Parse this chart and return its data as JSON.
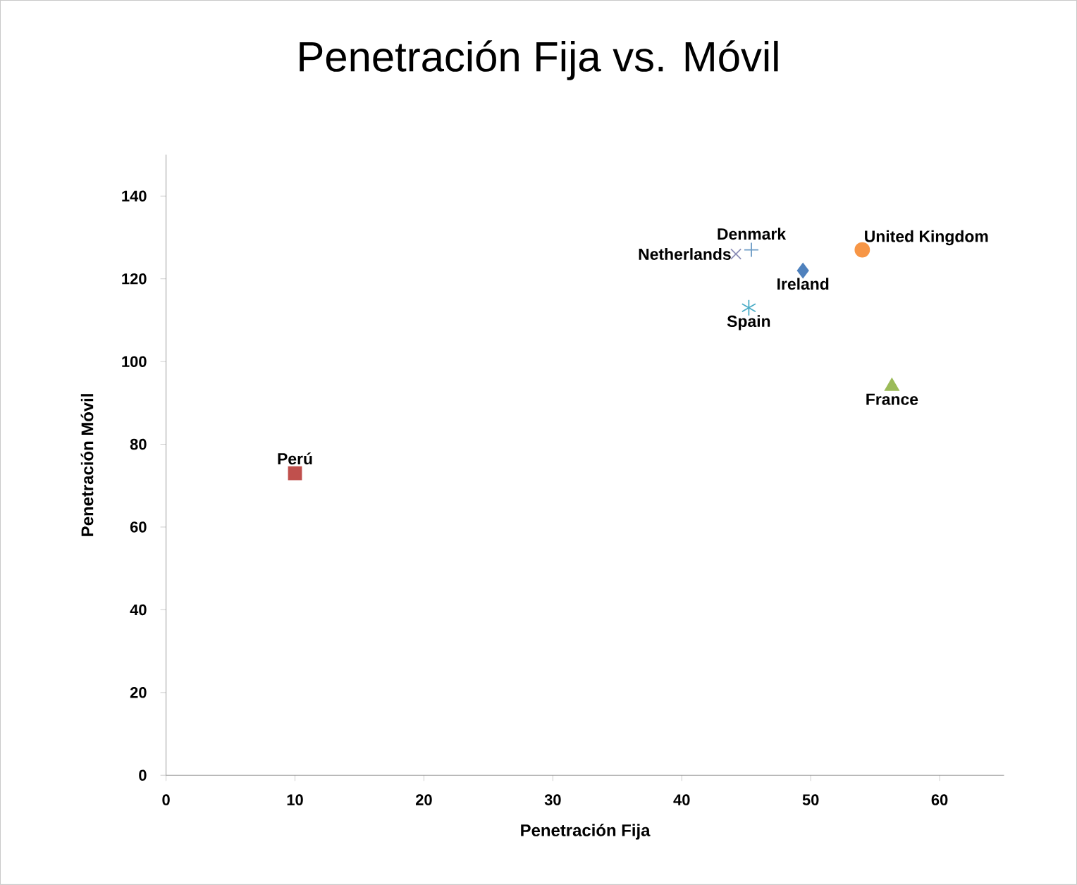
{
  "chart_data": {
    "type": "scatter",
    "title": "Penetración Fija vs. Móvil",
    "xlabel": "Penetración Fija",
    "ylabel": "Penetración Móvil",
    "xlim": [
      0,
      65
    ],
    "ylim": [
      0,
      150
    ],
    "xticks": [
      0,
      10,
      20,
      30,
      40,
      50,
      60
    ],
    "yticks": [
      0,
      20,
      40,
      60,
      80,
      100,
      120,
      140
    ],
    "grid": false,
    "series": [
      {
        "name": "Perú",
        "color": "#c0504d",
        "marker": "square",
        "x": [
          10.0
        ],
        "values": [
          73
        ]
      },
      {
        "name": "Netherlands",
        "color": "#8d8fb8",
        "marker": "cross",
        "x": [
          44.2
        ],
        "values": [
          126
        ]
      },
      {
        "name": "Denmark",
        "color": "#6c9bc6",
        "marker": "plus",
        "x": [
          45.4
        ],
        "values": [
          127
        ]
      },
      {
        "name": "Spain",
        "color": "#4bacc6",
        "x": [
          45.2
        ],
        "values": [
          113
        ]
      },
      {
        "name": "Ireland",
        "color": "#4f81bd",
        "marker": "diamond",
        "x": [
          49.4
        ],
        "values": [
          122
        ]
      },
      {
        "name": "United Kingdom",
        "color": "#f79646",
        "marker": "circle",
        "x": [
          54.0
        ],
        "values": [
          127
        ]
      },
      {
        "name": "France",
        "color": "#9bbb59",
        "marker": "triangle",
        "x": [
          56.3
        ],
        "values": [
          94
        ]
      }
    ]
  }
}
